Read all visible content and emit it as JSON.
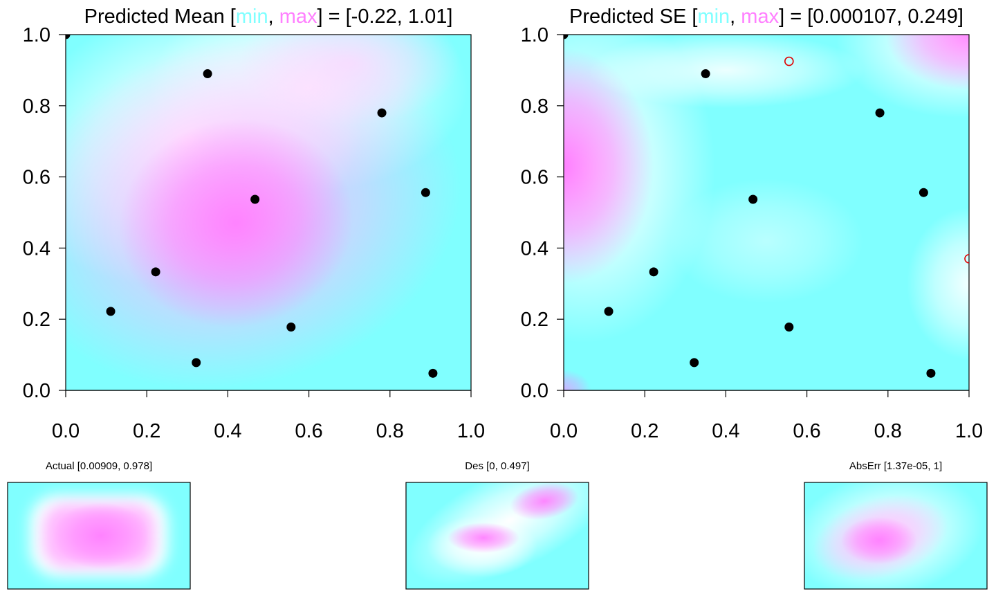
{
  "colors": {
    "low": "#80ffff",
    "mid": "#ffffff",
    "high": "#ff80ff",
    "point": "#000000",
    "marker": "#e00000"
  },
  "chart_data": [
    {
      "id": "mean",
      "type": "heatmap",
      "title_prefix": "Predicted Mean [",
      "title_min": "min",
      "title_sep": ", ",
      "title_max": "max",
      "title_suffix": "] = [-0.22, 1.01]",
      "xlim": [
        0,
        1
      ],
      "ylim": [
        0,
        1
      ],
      "xticks": [
        "0.0",
        "0.2",
        "0.4",
        "0.6",
        "0.8",
        "1.0"
      ],
      "yticks": [
        "0.0",
        "0.2",
        "0.4",
        "0.6",
        "0.8",
        "1.0"
      ],
      "range": [
        -0.22,
        1.01
      ],
      "points": [
        [
          0.0,
          1.0
        ],
        [
          0.35,
          0.89
        ],
        [
          0.78,
          0.78
        ],
        [
          0.467,
          0.537
        ],
        [
          0.888,
          0.556
        ],
        [
          0.222,
          0.333
        ],
        [
          0.111,
          0.222
        ],
        [
          0.556,
          0.178
        ],
        [
          0.322,
          0.078
        ],
        [
          0.906,
          0.048
        ]
      ],
      "markers": []
    },
    {
      "id": "se",
      "type": "heatmap",
      "title_prefix": "Predicted SE [",
      "title_min": "min",
      "title_sep": ", ",
      "title_max": "max",
      "title_suffix": "] = [0.000107, 0.249]",
      "xlim": [
        0,
        1
      ],
      "ylim": [
        0,
        1
      ],
      "xticks": [
        "0.0",
        "0.2",
        "0.4",
        "0.6",
        "0.8",
        "1.0"
      ],
      "yticks": [
        "0.0",
        "0.2",
        "0.4",
        "0.6",
        "0.8",
        "1.0"
      ],
      "range": [
        0.000107,
        0.249
      ],
      "points": [
        [
          0.0,
          1.0
        ],
        [
          0.35,
          0.89
        ],
        [
          0.78,
          0.78
        ],
        [
          0.467,
          0.537
        ],
        [
          0.888,
          0.556
        ],
        [
          0.222,
          0.333
        ],
        [
          0.111,
          0.222
        ],
        [
          0.556,
          0.178
        ],
        [
          0.322,
          0.078
        ],
        [
          0.906,
          0.048
        ]
      ],
      "markers": [
        [
          0.556,
          0.925
        ],
        [
          1.0,
          0.37
        ]
      ]
    },
    {
      "id": "actual",
      "type": "heatmap",
      "title": "Actual [0.00909, 0.978]",
      "range": [
        0.00909,
        0.978
      ]
    },
    {
      "id": "des",
      "type": "heatmap",
      "title": "Des [0, 0.497]",
      "range": [
        0,
        0.497
      ]
    },
    {
      "id": "abserr",
      "type": "heatmap",
      "title": "AbsErr [1.37e-05, 1]",
      "range": [
        1.37e-05,
        1
      ]
    }
  ]
}
